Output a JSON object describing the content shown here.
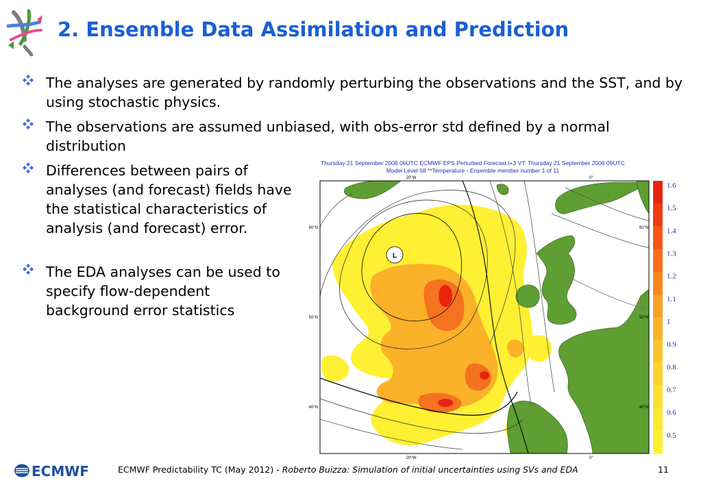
{
  "slide": {
    "title": "2. Ensemble Data Assimilation and Prediction",
    "bullets": [
      "The analyses are generated by randomly perturbing the observations and the SST, and by using stochastic physics.",
      "The observations are assumed unbiased, with obs-error std defined by a normal distribution",
      "Differences between pairs of analyses (and forecast) fields have the statistical characteristics of analysis (and forecast) error.",
      "The EDA analyses can be used to specify flow-dependent background error statistics"
    ],
    "bullet_color": "#3b6fd6",
    "title_color": "#1a5fd6"
  },
  "map": {
    "title_line1": "Thursday 21 September 2006 06UTC ECMWF   EPS Perturbed Forecast t+3 VT: Thursday 21 September 2006 09UTC",
    "title_line2": "Model Level 58 **Temperature  - Ensemble member number 1 of  11",
    "top_labels": [
      "20°W",
      "0°"
    ],
    "bottom_labels": [
      "20°W",
      "0°"
    ],
    "left_labels": [
      "60°N",
      "50°N",
      "40°N"
    ],
    "right_labels": [
      "60°N",
      "50°N",
      "40°N"
    ],
    "low_label": "L",
    "colorbar_values": [
      1.6,
      1.5,
      1.4,
      1.3,
      1.2,
      1.1,
      1,
      0.9,
      0.8,
      0.7,
      0.6,
      0.5
    ],
    "colorbar_label_color": "#1f2fb0",
    "colorbar_colors": [
      "#e8240f",
      "#f03a12",
      "#f55516",
      "#f76e1a",
      "#f8871e",
      "#f99f22",
      "#fab426",
      "#fbc52a",
      "#fcd52c",
      "#fde02c",
      "#fee82e",
      "#fff033"
    ],
    "land_color": "#5e9e32"
  },
  "footer": {
    "logo_text": "ECMWF",
    "text_regular": "ECMWF Predictability TC (May 2012) - ",
    "text_italic": "Roberto Buizza: Simulation of initial uncertainties using SVs and EDA",
    "page_number": "11"
  }
}
